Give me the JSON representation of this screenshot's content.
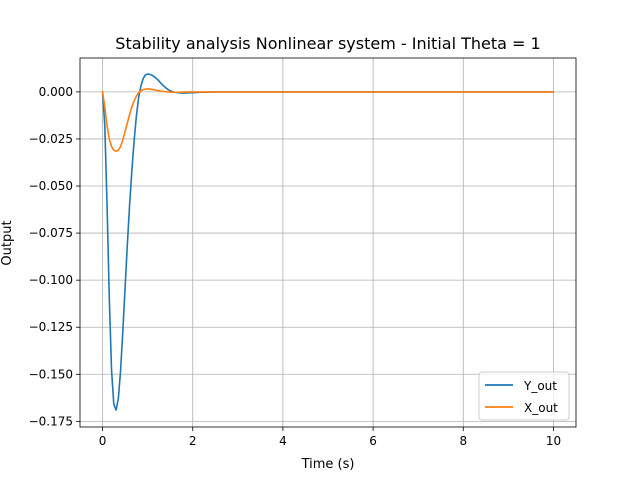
{
  "chart_data": {
    "type": "line",
    "title": "Stability analysis Nonlinear system - Initial Theta = 1",
    "xlabel": "Time (s)",
    "ylabel": "Output",
    "xlim": [
      -0.5,
      10.5
    ],
    "ylim": [
      -0.178,
      0.018
    ],
    "xticks": [
      0,
      2,
      4,
      6,
      8,
      10
    ],
    "xtick_labels": [
      "0",
      "2",
      "4",
      "6",
      "8",
      "10"
    ],
    "yticks": [
      0.0,
      -0.025,
      -0.05,
      -0.075,
      -0.1,
      -0.125,
      -0.15,
      -0.175
    ],
    "ytick_labels": [
      "0.000",
      "−0.025",
      "−0.050",
      "−0.075",
      "−0.100",
      "−0.125",
      "−0.150",
      "−0.175"
    ],
    "grid": true,
    "legend_position": "bottom-right",
    "series": [
      {
        "name": "Y_out",
        "color": "#1f77b4",
        "x": [
          0,
          0.05,
          0.1,
          0.15,
          0.2,
          0.25,
          0.3,
          0.35,
          0.4,
          0.45,
          0.5,
          0.55,
          0.6,
          0.65,
          0.7,
          0.75,
          0.8,
          0.85,
          0.9,
          0.95,
          1.0,
          1.05,
          1.1,
          1.15,
          1.2,
          1.25,
          1.3,
          1.35,
          1.4,
          1.45,
          1.5,
          1.55,
          1.6,
          1.7,
          1.8,
          1.9,
          2.0,
          2.2,
          2.5,
          3,
          4,
          5,
          6,
          7,
          8,
          9,
          10
        ],
        "y": [
          0.0,
          -0.018,
          -0.06,
          -0.11,
          -0.148,
          -0.166,
          -0.169,
          -0.163,
          -0.148,
          -0.127,
          -0.104,
          -0.081,
          -0.06,
          -0.042,
          -0.026,
          -0.013,
          -0.003,
          0.003,
          0.007,
          0.009,
          0.0095,
          0.0093,
          0.0088,
          0.008,
          0.007,
          0.0058,
          0.0045,
          0.0033,
          0.0022,
          0.0013,
          0.0006,
          0.0001,
          -0.0002,
          -0.0005,
          -0.0006,
          -0.0005,
          -0.0004,
          -0.0002,
          0.0,
          0.0,
          0.0,
          0.0,
          0.0,
          0.0,
          0.0,
          0.0,
          0.0
        ]
      },
      {
        "name": "X_out",
        "color": "#ff7f0e",
        "x": [
          0,
          0.05,
          0.1,
          0.15,
          0.2,
          0.25,
          0.3,
          0.35,
          0.4,
          0.45,
          0.5,
          0.55,
          0.6,
          0.65,
          0.7,
          0.75,
          0.8,
          0.85,
          0.9,
          0.95,
          1.0,
          1.05,
          1.1,
          1.15,
          1.2,
          1.3,
          1.4,
          1.5,
          1.6,
          1.7,
          1.8,
          2.0,
          2.5,
          3,
          4,
          5,
          6,
          7,
          8,
          9,
          10
        ],
        "y": [
          0.0,
          -0.008,
          -0.018,
          -0.025,
          -0.029,
          -0.031,
          -0.0315,
          -0.031,
          -0.029,
          -0.0255,
          -0.021,
          -0.0165,
          -0.012,
          -0.008,
          -0.0048,
          -0.0023,
          -0.0005,
          0.0006,
          0.0012,
          0.0015,
          0.0016,
          0.0015,
          0.0013,
          0.0011,
          0.0008,
          0.0004,
          0.0001,
          -0.0001,
          -0.0002,
          -0.0002,
          -0.0001,
          0.0,
          0.0,
          0.0,
          0.0,
          0.0,
          0.0,
          0.0,
          0.0,
          0.0,
          0.0
        ]
      }
    ]
  }
}
